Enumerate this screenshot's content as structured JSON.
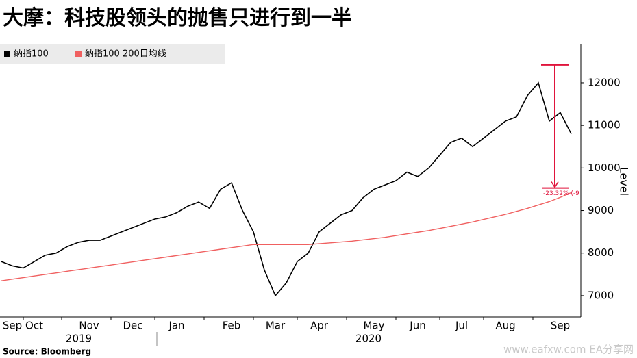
{
  "chart_data": {
    "type": "line",
    "title": "大摩：科技股领头的抛售只进行到一半",
    "y_label": "Level",
    "source": "Source: Bloomberg",
    "watermark": "www.eafxw.com  EA分享网",
    "categories": [
      null,
      "Sep",
      null,
      "Oct",
      null,
      null,
      null,
      null,
      "Nov",
      null,
      null,
      null,
      "Dec",
      null,
      null,
      null,
      "Jan",
      null,
      null,
      null,
      null,
      "Feb",
      null,
      null,
      null,
      "Mar",
      null,
      null,
      null,
      "Apr",
      null,
      null,
      null,
      null,
      "May",
      null,
      null,
      null,
      "Jun",
      null,
      null,
      null,
      "Jul",
      null,
      null,
      null,
      "Aug",
      null,
      null,
      null,
      null,
      "Sep",
      null
    ],
    "years": [
      "2019",
      "2020"
    ],
    "series": [
      {
        "name": "纳指100",
        "color": "#000000",
        "values": [
          7800,
          7700,
          7650,
          7800,
          7950,
          8000,
          8150,
          8250,
          8300,
          8300,
          8400,
          8500,
          8600,
          8700,
          8800,
          8850,
          8950,
          9100,
          9200,
          9050,
          9500,
          9650,
          9000,
          8500,
          7600,
          7000,
          7300,
          7800,
          8000,
          8500,
          8700,
          8900,
          9000,
          9300,
          9500,
          9600,
          9700,
          9900,
          9800,
          10000,
          10300,
          10600,
          10700,
          10500,
          10700,
          10900,
          11100,
          11200,
          11700,
          12000,
          11100,
          11300,
          10800
        ]
      },
      {
        "name": "纳指100 200日均线",
        "color": "#f06060",
        "values": [
          7350,
          7387,
          7424,
          7461,
          7498,
          7535,
          7572,
          7609,
          7646,
          7683,
          7720,
          7757,
          7794,
          7831,
          7868,
          7905,
          7942,
          7979,
          8016,
          8053,
          8090,
          8127,
          8164,
          8201,
          8200,
          8200,
          8200,
          8200,
          8200,
          8220,
          8240,
          8260,
          8280,
          8310,
          8340,
          8370,
          8410,
          8450,
          8490,
          8530,
          8580,
          8630,
          8680,
          8730,
          8790,
          8850,
          8910,
          8980,
          9050,
          9130,
          9210,
          9310,
          9420
        ]
      }
    ],
    "annotation": {
      "text": "-23.32% (-9",
      "high": 12420,
      "low": 9530,
      "color": "#e0143c"
    },
    "ylim": [
      6500,
      12900
    ],
    "yticks": [
      7000,
      8000,
      9000,
      10000,
      11000,
      12000
    ]
  }
}
